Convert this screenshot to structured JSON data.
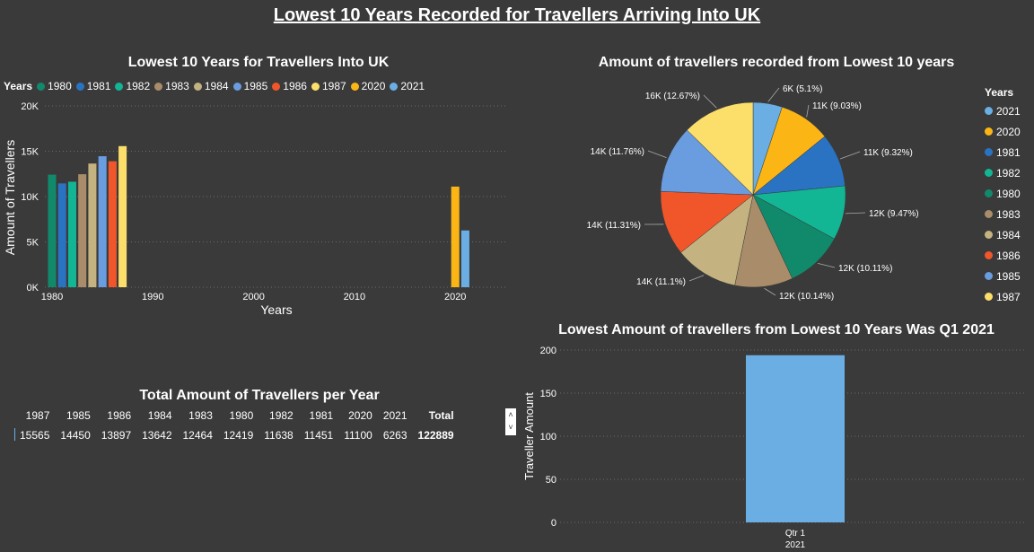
{
  "page_title": "Lowest 10 Years Recorded for Travellers Arriving Into UK",
  "colors": {
    "1980": "#118a6b",
    "1981": "#2a73c3",
    "1982": "#12b594",
    "1983": "#a98d6a",
    "1984": "#c4b380",
    "1985": "#6a9ce0",
    "1986": "#f0562a",
    "1987": "#fcdf6b",
    "2020": "#fbb616",
    "2021": "#6aaee3"
  },
  "bar_chart": {
    "title": "Lowest 10 Years for Travellers Into UK",
    "legend_title": "Years",
    "legend": [
      "1980",
      "1981",
      "1982",
      "1983",
      "1984",
      "1985",
      "1986",
      "1987",
      "2020",
      "2021"
    ],
    "ylabel": "Amount of Travellers",
    "xlabel": "Years",
    "yticks": [
      "0K",
      "5K",
      "10K",
      "15K",
      "20K"
    ],
    "xticks": [
      "1980",
      "1990",
      "2000",
      "2010",
      "2020"
    ]
  },
  "pie_chart": {
    "title": "Amount of travellers recorded from Lowest 10 years",
    "legend_title": "Years",
    "legend": [
      "2021",
      "2020",
      "1981",
      "1982",
      "1980",
      "1983",
      "1984",
      "1986",
      "1985",
      "1987"
    ],
    "labels": [
      "6K (5.1%)",
      "11K (9.03%)",
      "11K (9.32%)",
      "12K (9.47%)",
      "12K (10.11%)",
      "12K (10.14%)",
      "14K (11.1%)",
      "14K (11.31%)",
      "14K (11.76%)",
      "16K (12.67%)"
    ]
  },
  "totals_table": {
    "title": "Total Amount of Travellers per Year",
    "headers": [
      "1987",
      "1985",
      "1986",
      "1984",
      "1983",
      "1980",
      "1982",
      "1981",
      "2020",
      "2021",
      "Total"
    ],
    "values": [
      "15565",
      "14450",
      "13897",
      "13642",
      "12464",
      "12419",
      "11638",
      "11451",
      "11100",
      "6263",
      "122889"
    ]
  },
  "quarter_chart": {
    "title": "Lowest Amount of travellers from Lowest 10 Years Was Q1 2021",
    "ylabel": "Traveller Amount",
    "yticks": [
      "0",
      "50",
      "100",
      "150",
      "200"
    ],
    "category_line1": "Qtr 1",
    "category_line2": "2021"
  },
  "chart_data": [
    {
      "type": "bar",
      "title": "Lowest 10 Years for Travellers Into UK",
      "xlabel": "Years",
      "ylabel": "Amount of Travellers",
      "xlim": [
        1980,
        2021
      ],
      "ylim": [
        0,
        20000
      ],
      "series": [
        {
          "name": "1980",
          "x": 1980,
          "value": 12419
        },
        {
          "name": "1981",
          "x": 1981,
          "value": 11451
        },
        {
          "name": "1982",
          "x": 1982,
          "value": 11638
        },
        {
          "name": "1983",
          "x": 1983,
          "value": 12464
        },
        {
          "name": "1984",
          "x": 1984,
          "value": 13642
        },
        {
          "name": "1985",
          "x": 1985,
          "value": 14450
        },
        {
          "name": "1986",
          "x": 1986,
          "value": 13897
        },
        {
          "name": "1987",
          "x": 1987,
          "value": 15565
        },
        {
          "name": "2020",
          "x": 2020,
          "value": 11100
        },
        {
          "name": "2021",
          "x": 2021,
          "value": 6263
        }
      ]
    },
    {
      "type": "pie",
      "title": "Amount of travellers recorded from Lowest 10 years",
      "slices": [
        {
          "name": "2021",
          "value": 6263,
          "pct": 5.1
        },
        {
          "name": "2020",
          "value": 11100,
          "pct": 9.03
        },
        {
          "name": "1981",
          "value": 11451,
          "pct": 9.32
        },
        {
          "name": "1982",
          "value": 11638,
          "pct": 9.47
        },
        {
          "name": "1980",
          "value": 12419,
          "pct": 10.11
        },
        {
          "name": "1983",
          "value": 12464,
          "pct": 10.14
        },
        {
          "name": "1984",
          "value": 13642,
          "pct": 11.1
        },
        {
          "name": "1986",
          "value": 13897,
          "pct": 11.31
        },
        {
          "name": "1985",
          "value": 14450,
          "pct": 11.76
        },
        {
          "name": "1987",
          "value": 15565,
          "pct": 12.67
        }
      ]
    },
    {
      "type": "table",
      "title": "Total Amount of Travellers per Year",
      "columns": [
        "1987",
        "1985",
        "1986",
        "1984",
        "1983",
        "1980",
        "1982",
        "1981",
        "2020",
        "2021",
        "Total"
      ],
      "rows": [
        [
          15565,
          14450,
          13897,
          13642,
          12464,
          12419,
          11638,
          11451,
          11100,
          6263,
          122889
        ]
      ]
    },
    {
      "type": "bar",
      "title": "Lowest Amount of travellers from Lowest 10 Years Was Q1 2021",
      "ylabel": "Traveller Amount",
      "categories": [
        "Qtr 1 2021"
      ],
      "values": [
        194
      ],
      "ylim": [
        0,
        200
      ]
    }
  ]
}
